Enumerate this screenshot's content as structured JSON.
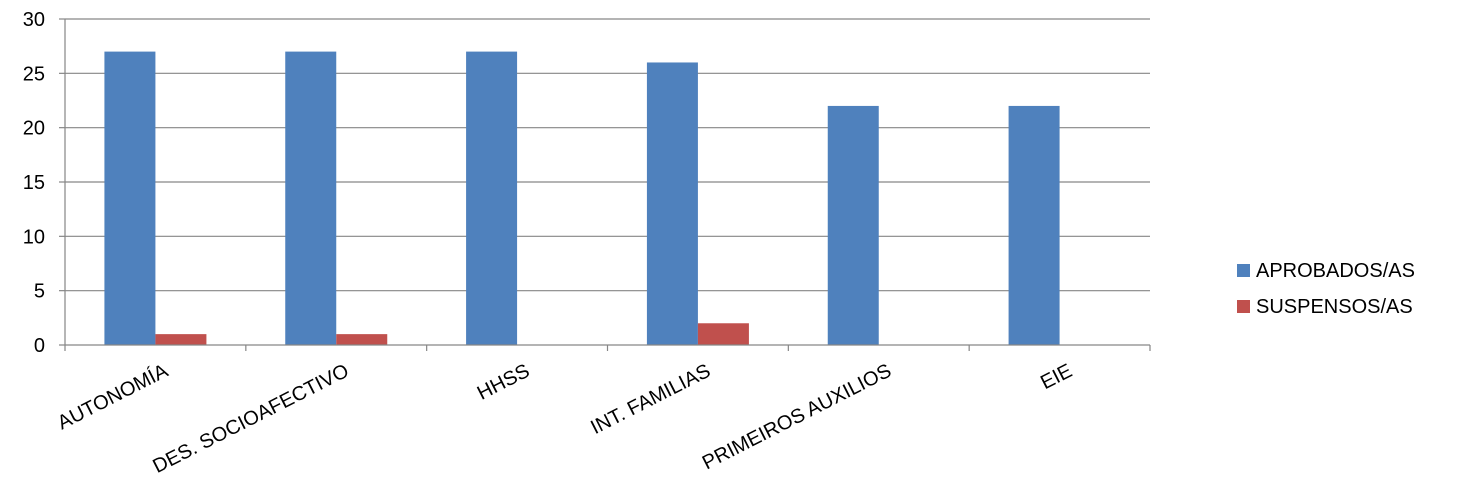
{
  "chart_data": {
    "type": "bar",
    "title": "",
    "xlabel": "",
    "ylabel": "",
    "ylim": [
      0,
      30
    ],
    "yticks": [
      0,
      5,
      10,
      15,
      20,
      25,
      30
    ],
    "grid": true,
    "legend_position": "right",
    "categories": [
      "AUTONOMÍA",
      "DES. SOCIOAFECTIVO",
      "HHSS",
      "INT. FAMILIAS",
      "PRIMEIROS AUXILIOS",
      "EIE"
    ],
    "series": [
      {
        "name": "APROBADOS/AS",
        "color": "#4F81BD",
        "values": [
          27,
          27,
          27,
          26,
          22,
          22
        ]
      },
      {
        "name": "SUSPENSOS/AS",
        "color": "#C0504D",
        "values": [
          1,
          1,
          0,
          2,
          0,
          0
        ]
      }
    ]
  }
}
